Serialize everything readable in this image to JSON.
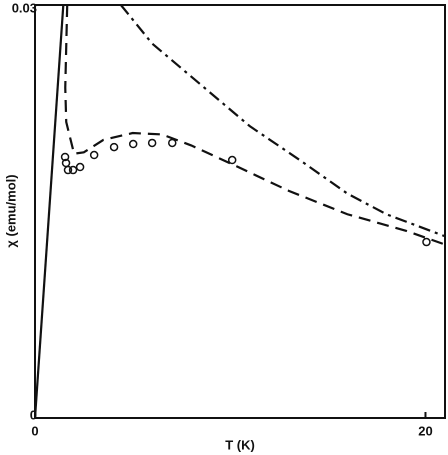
{
  "chart_data": {
    "type": "line",
    "x_label": "T (K)",
    "y_label": "χ (emu/mol)",
    "xlim": [
      0,
      21
    ],
    "ylim": [
      0,
      0.03
    ],
    "xticks": [
      0,
      20
    ],
    "yticks": [
      0,
      0.03
    ],
    "series": [
      {
        "color": "#111111",
        "dash": "solid",
        "x": [
          0,
          1.45
        ],
        "values": [
          0,
          0.03
        ]
      },
      {
        "color": "#111111",
        "dash": "dashed",
        "x": [
          1.65,
          1.55,
          1.6,
          2.0,
          2.5,
          3.5,
          5,
          6.5,
          8,
          10,
          13,
          16,
          19,
          21
        ],
        "values": [
          0.03,
          0.024,
          0.0215,
          0.0192,
          0.0193,
          0.0202,
          0.0207,
          0.0206,
          0.0198,
          0.0185,
          0.0165,
          0.0148,
          0.0136,
          0.0126
        ]
      },
      {
        "color": "#111111",
        "dash": "dashdot",
        "x": [
          4.4,
          6,
          8.5,
          11,
          13.6,
          16,
          18,
          21
        ],
        "values": [
          0.03,
          0.0272,
          0.0242,
          0.0212,
          0.0187,
          0.0163,
          0.0148,
          0.0132
        ]
      },
      {
        "color": "#111111",
        "dash": "none",
        "marker": "circle",
        "x": [
          1.54,
          1.59,
          1.69,
          1.95,
          2.31,
          3.03,
          4.05,
          5.03,
          6.0,
          7.03,
          10.1,
          20.05
        ],
        "values": [
          0.01896,
          0.01852,
          0.01801,
          0.01801,
          0.01823,
          0.0191,
          0.01968,
          0.0199,
          0.01998,
          0.01998,
          0.01874,
          0.01278
        ]
      }
    ]
  }
}
